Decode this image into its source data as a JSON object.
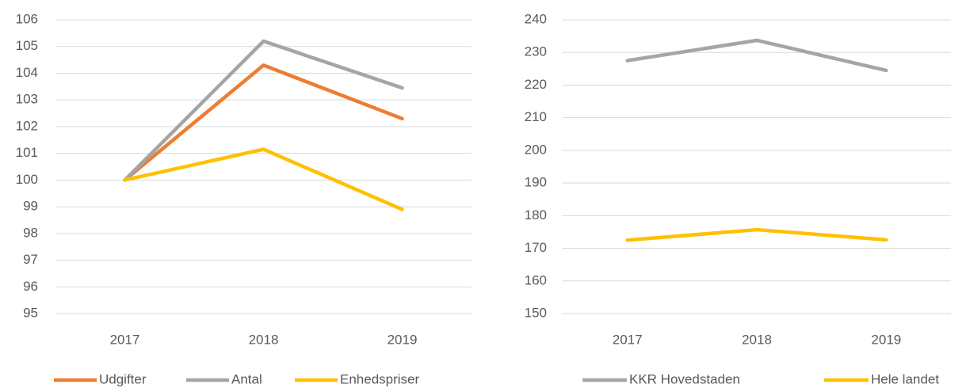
{
  "chart_data": [
    {
      "type": "line",
      "categories": [
        "2017",
        "2018",
        "2019"
      ],
      "series": [
        {
          "name": "Udgifter",
          "color": "#ED7D31",
          "values": [
            100,
            104.3,
            102.3
          ]
        },
        {
          "name": "Antal",
          "color": "#A5A5A5",
          "values": [
            100,
            105.2,
            103.45
          ]
        },
        {
          "name": "Enhedspriser",
          "color": "#FFC000",
          "values": [
            100,
            101.15,
            98.9
          ]
        }
      ],
      "ylim": [
        95,
        106
      ],
      "yticks": [
        95,
        96,
        97,
        98,
        99,
        100,
        101,
        102,
        103,
        104,
        105,
        106
      ],
      "grid": true,
      "legend": "bottom"
    },
    {
      "type": "line",
      "categories": [
        "2017",
        "2018",
        "2019"
      ],
      "series": [
        {
          "name": "KKR Hovedstaden",
          "color": "#A5A5A5",
          "values": [
            227.5,
            233.7,
            224.5
          ]
        },
        {
          "name": "Hele landet",
          "color": "#FFC000",
          "values": [
            172.5,
            175.7,
            172.6
          ]
        }
      ],
      "ylim": [
        150,
        240
      ],
      "yticks": [
        150,
        160,
        170,
        180,
        190,
        200,
        210,
        220,
        230,
        240
      ],
      "grid": true,
      "legend": "bottom"
    }
  ]
}
